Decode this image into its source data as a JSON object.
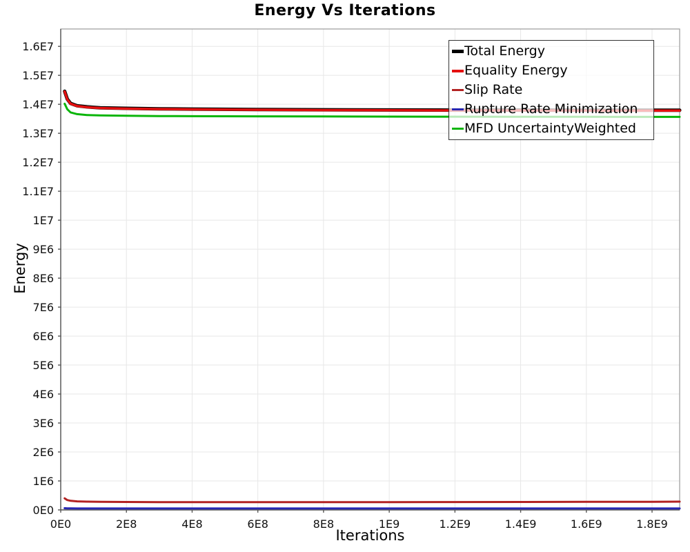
{
  "chart_data": {
    "type": "line",
    "title": "Energy Vs Iterations",
    "xlabel": "Iterations",
    "ylabel": "Energy",
    "xlim": [
      0,
      1884000000
    ],
    "ylim": [
      0,
      16600000
    ],
    "grid": true,
    "legend_position": "top-right",
    "background_color": "#ffffff",
    "gridline_color": "#e7e7e7",
    "border_color": "#9a9a9a",
    "axis_color": "#555555",
    "x_ticks": {
      "values": [
        0,
        200000000,
        400000000,
        600000000,
        800000000,
        1000000000,
        1200000000,
        1400000000,
        1600000000,
        1800000000
      ],
      "labels": [
        "0E0",
        "2E8",
        "4E8",
        "6E8",
        "8E8",
        "1E9",
        "1.2E9",
        "1.4E9",
        "1.6E9",
        "1.8E9"
      ]
    },
    "y_ticks": {
      "values": [
        0,
        1000000,
        2000000,
        3000000,
        4000000,
        5000000,
        6000000,
        7000000,
        8000000,
        9000000,
        10000000,
        11000000,
        12000000,
        13000000,
        14000000,
        15000000,
        16000000
      ],
      "labels": [
        "0E0",
        "1E6",
        "2E6",
        "3E6",
        "4E6",
        "5E6",
        "6E6",
        "7E6",
        "8E6",
        "9E6",
        "1E7",
        "1.1E7",
        "1.2E7",
        "1.3E7",
        "1.4E7",
        "1.5E7",
        "1.6E7"
      ]
    },
    "x": [
      12000000,
      20000000,
      30000000,
      50000000,
      80000000,
      120000000,
      200000000,
      300000000,
      400000000,
      600000000,
      800000000,
      1000000000,
      1200000000,
      1400000000,
      1600000000,
      1800000000,
      1884000000
    ],
    "series": [
      {
        "name": "Total Energy",
        "color": "#000000",
        "line_width": 5,
        "values": [
          14450000,
          14180000,
          14030000,
          13950000,
          13910000,
          13880000,
          13860000,
          13845000,
          13835000,
          13820000,
          13810000,
          13805000,
          13800000,
          13800000,
          13795000,
          13795000,
          13795000
        ]
      },
      {
        "name": "Equality Energy",
        "color": "#e41010",
        "line_width": 3.5,
        "values": [
          14440000,
          14170000,
          14020000,
          13940000,
          13900000,
          13870000,
          13850000,
          13835000,
          13825000,
          13810000,
          13800000,
          13795000,
          13790000,
          13790000,
          13785000,
          13785000,
          13785000
        ]
      },
      {
        "name": "Slip Rate",
        "color": "#b22222",
        "line_width": 3,
        "values": [
          400000,
          340000,
          315000,
          295000,
          285000,
          280000,
          275000,
          270000,
          268000,
          266000,
          266000,
          268000,
          272000,
          275000,
          278000,
          282000,
          285000
        ]
      },
      {
        "name": "Rupture Rate Minimization",
        "color": "#2626b2",
        "line_width": 3,
        "values": [
          60000,
          55000,
          52000,
          50000,
          50000,
          50000,
          50000,
          50000,
          50000,
          50000,
          50000,
          50000,
          50000,
          50000,
          50000,
          50000,
          50000
        ]
      },
      {
        "name": "MFD UncertaintyWeighted",
        "color": "#0ab50a",
        "line_width": 3,
        "values": [
          14020000,
          13830000,
          13720000,
          13660000,
          13630000,
          13615000,
          13605000,
          13595000,
          13590000,
          13585000,
          13580000,
          13575000,
          13572000,
          13570000,
          13568000,
          13565000,
          13565000
        ]
      }
    ]
  }
}
